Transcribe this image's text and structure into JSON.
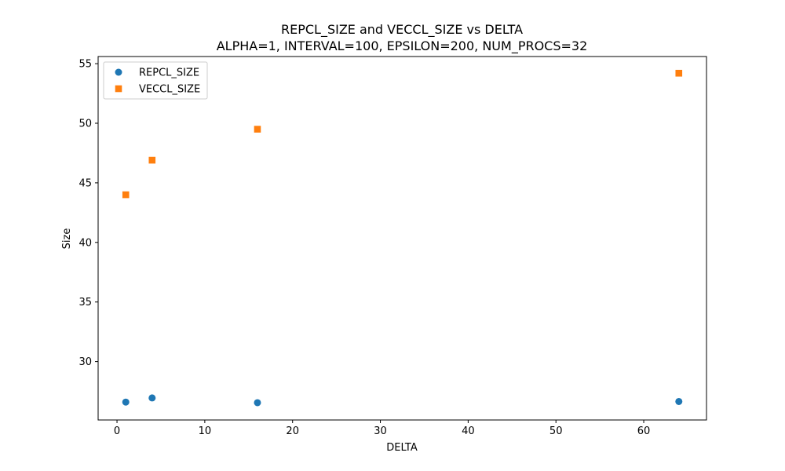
{
  "chart_data": {
    "type": "scatter",
    "title": "REPCL_SIZE and VECCL_SIZE vs DELTA",
    "subtitle": "ALPHA=1, INTERVAL=100, EPSILON=200, NUM_PROCS=32",
    "xlabel": "DELTA",
    "ylabel": "Size",
    "xlim": [
      -2.15,
      67.15
    ],
    "ylim": [
      25.1,
      55.6
    ],
    "xticks": [
      0,
      10,
      20,
      30,
      40,
      50,
      60
    ],
    "yticks": [
      30,
      35,
      40,
      45,
      50,
      55
    ],
    "grid": false,
    "legend_position": "top-left",
    "series": [
      {
        "name": "REPCL_SIZE",
        "marker": "circle",
        "color": "#1f77b4",
        "x": [
          1,
          4,
          16,
          64
        ],
        "y": [
          26.6,
          26.95,
          26.55,
          26.65
        ]
      },
      {
        "name": "VECCL_SIZE",
        "marker": "square",
        "color": "#ff7f0e",
        "x": [
          1,
          4,
          16,
          64
        ],
        "y": [
          44.0,
          46.9,
          49.5,
          54.2
        ]
      }
    ]
  }
}
